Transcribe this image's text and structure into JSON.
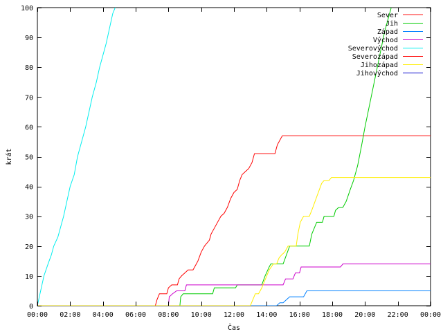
{
  "chart_data": {
    "type": "line",
    "xlabel": "Čas",
    "ylabel": "krát",
    "xlim": [
      0,
      24
    ],
    "ylim": [
      0,
      100
    ],
    "x_ticks": [
      {
        "v": 0,
        "label": "00:00"
      },
      {
        "v": 2,
        "label": "02:00"
      },
      {
        "v": 4,
        "label": "04:00"
      },
      {
        "v": 6,
        "label": "06:00"
      },
      {
        "v": 8,
        "label": "08:00"
      },
      {
        "v": 10,
        "label": "10:00"
      },
      {
        "v": 12,
        "label": "12:00"
      },
      {
        "v": 14,
        "label": "14:00"
      },
      {
        "v": 16,
        "label": "16:00"
      },
      {
        "v": 18,
        "label": "18:00"
      },
      {
        "v": 20,
        "label": "20:00"
      },
      {
        "v": 22,
        "label": "22:00"
      },
      {
        "v": 24,
        "label": "00:00"
      }
    ],
    "y_ticks": [
      {
        "v": 0,
        "label": "0"
      },
      {
        "v": 10,
        "label": "10"
      },
      {
        "v": 20,
        "label": "20"
      },
      {
        "v": 30,
        "label": "30"
      },
      {
        "v": 40,
        "label": "40"
      },
      {
        "v": 50,
        "label": "50"
      },
      {
        "v": 60,
        "label": "60"
      },
      {
        "v": 70,
        "label": "70"
      },
      {
        "v": 80,
        "label": "80"
      },
      {
        "v": 90,
        "label": "90"
      },
      {
        "v": 100,
        "label": "100"
      }
    ],
    "grid": false,
    "legend_position": "top-right",
    "series": [
      {
        "name": "Sever",
        "color": "#ff0000",
        "points": [
          [
            0,
            0
          ],
          [
            7.2,
            0
          ],
          [
            7.3,
            2
          ],
          [
            7.45,
            4
          ],
          [
            7.9,
            4
          ],
          [
            8.0,
            6
          ],
          [
            8.2,
            7
          ],
          [
            8.55,
            7
          ],
          [
            8.65,
            9
          ],
          [
            8.8,
            10
          ],
          [
            9.0,
            11
          ],
          [
            9.2,
            12
          ],
          [
            9.5,
            12
          ],
          [
            9.6,
            13
          ],
          [
            9.8,
            15
          ],
          [
            10.0,
            18
          ],
          [
            10.2,
            20
          ],
          [
            10.5,
            22
          ],
          [
            10.6,
            24
          ],
          [
            10.8,
            26
          ],
          [
            11.0,
            28
          ],
          [
            11.2,
            30
          ],
          [
            11.4,
            31
          ],
          [
            11.6,
            33
          ],
          [
            11.8,
            36
          ],
          [
            12.0,
            38
          ],
          [
            12.2,
            39
          ],
          [
            12.35,
            42
          ],
          [
            12.5,
            44
          ],
          [
            12.7,
            45
          ],
          [
            12.9,
            46
          ],
          [
            13.1,
            48
          ],
          [
            13.25,
            51
          ],
          [
            14.5,
            51
          ],
          [
            14.65,
            54
          ],
          [
            14.85,
            56
          ],
          [
            14.95,
            57
          ],
          [
            24,
            57
          ]
        ]
      },
      {
        "name": "Jih",
        "color": "#00cc00",
        "points": [
          [
            0,
            0
          ],
          [
            8.7,
            0
          ],
          [
            8.75,
            3
          ],
          [
            8.9,
            4
          ],
          [
            10.7,
            4
          ],
          [
            10.8,
            6
          ],
          [
            12.1,
            6
          ],
          [
            12.2,
            7
          ],
          [
            13.7,
            7
          ],
          [
            13.9,
            10
          ],
          [
            14.15,
            13
          ],
          [
            14.25,
            14
          ],
          [
            15.0,
            14
          ],
          [
            15.2,
            17
          ],
          [
            15.4,
            20
          ],
          [
            16.6,
            20
          ],
          [
            16.75,
            24
          ],
          [
            16.9,
            26
          ],
          [
            17.05,
            28
          ],
          [
            17.4,
            28
          ],
          [
            17.5,
            30
          ],
          [
            18.1,
            30
          ],
          [
            18.2,
            32
          ],
          [
            18.4,
            33
          ],
          [
            18.65,
            33
          ],
          [
            18.85,
            35
          ],
          [
            19.1,
            39
          ],
          [
            19.3,
            42
          ],
          [
            19.55,
            47
          ],
          [
            19.8,
            54
          ],
          [
            20.0,
            60
          ],
          [
            20.3,
            68
          ],
          [
            20.6,
            76
          ],
          [
            20.9,
            84
          ],
          [
            21.2,
            92
          ],
          [
            21.5,
            98
          ],
          [
            21.6,
            100
          ]
        ]
      },
      {
        "name": "Západ",
        "color": "#0080ff",
        "points": [
          [
            0,
            0
          ],
          [
            14.6,
            0
          ],
          [
            14.8,
            1
          ],
          [
            15.0,
            1
          ],
          [
            15.2,
            2
          ],
          [
            15.4,
            3
          ],
          [
            16.25,
            3
          ],
          [
            16.45,
            5
          ],
          [
            24,
            5
          ]
        ]
      },
      {
        "name": "Východ",
        "color": "#cc00cc",
        "points": [
          [
            0,
            0
          ],
          [
            8.0,
            0
          ],
          [
            8.05,
            3
          ],
          [
            8.25,
            4
          ],
          [
            8.5,
            5
          ],
          [
            9.0,
            5
          ],
          [
            9.1,
            7
          ],
          [
            15.0,
            7
          ],
          [
            15.15,
            9
          ],
          [
            15.6,
            9
          ],
          [
            15.75,
            11
          ],
          [
            16.0,
            11
          ],
          [
            16.1,
            13
          ],
          [
            18.5,
            13
          ],
          [
            18.65,
            14
          ],
          [
            24,
            14
          ]
        ]
      },
      {
        "name": "Severovýchod",
        "color": "#00eeee",
        "points": [
          [
            0,
            0
          ],
          [
            0.2,
            5
          ],
          [
            0.4,
            10
          ],
          [
            0.65,
            14
          ],
          [
            0.85,
            17
          ],
          [
            1.0,
            20
          ],
          [
            1.25,
            23
          ],
          [
            1.45,
            27
          ],
          [
            1.6,
            30
          ],
          [
            1.8,
            35
          ],
          [
            2.0,
            40
          ],
          [
            2.25,
            44
          ],
          [
            2.45,
            50
          ],
          [
            2.7,
            55
          ],
          [
            2.95,
            60
          ],
          [
            3.15,
            65
          ],
          [
            3.35,
            70
          ],
          [
            3.6,
            75
          ],
          [
            3.8,
            80
          ],
          [
            4.0,
            84
          ],
          [
            4.2,
            88
          ],
          [
            4.4,
            93
          ],
          [
            4.6,
            98
          ],
          [
            4.75,
            100
          ]
        ]
      },
      {
        "name": "Severozápad",
        "color": "#ff0000",
        "points": []
      },
      {
        "name": "Jihozápad",
        "color": "#ffee00",
        "points": [
          [
            0,
            0
          ],
          [
            13.0,
            0
          ],
          [
            13.15,
            2
          ],
          [
            13.3,
            4
          ],
          [
            13.5,
            4
          ],
          [
            13.7,
            6
          ],
          [
            13.85,
            8
          ],
          [
            14.0,
            10
          ],
          [
            14.15,
            12
          ],
          [
            14.4,
            14
          ],
          [
            14.6,
            14
          ],
          [
            14.75,
            16
          ],
          [
            14.9,
            17
          ],
          [
            15.1,
            18
          ],
          [
            15.3,
            20
          ],
          [
            15.8,
            20
          ],
          [
            15.9,
            24
          ],
          [
            16.05,
            28
          ],
          [
            16.25,
            30
          ],
          [
            16.6,
            30
          ],
          [
            16.75,
            32
          ],
          [
            16.95,
            35
          ],
          [
            17.15,
            38
          ],
          [
            17.35,
            41
          ],
          [
            17.5,
            42
          ],
          [
            17.8,
            42
          ],
          [
            17.95,
            43
          ],
          [
            24,
            43
          ]
        ]
      },
      {
        "name": "Jihovýchod",
        "color": "#0000cc",
        "points": []
      }
    ]
  }
}
